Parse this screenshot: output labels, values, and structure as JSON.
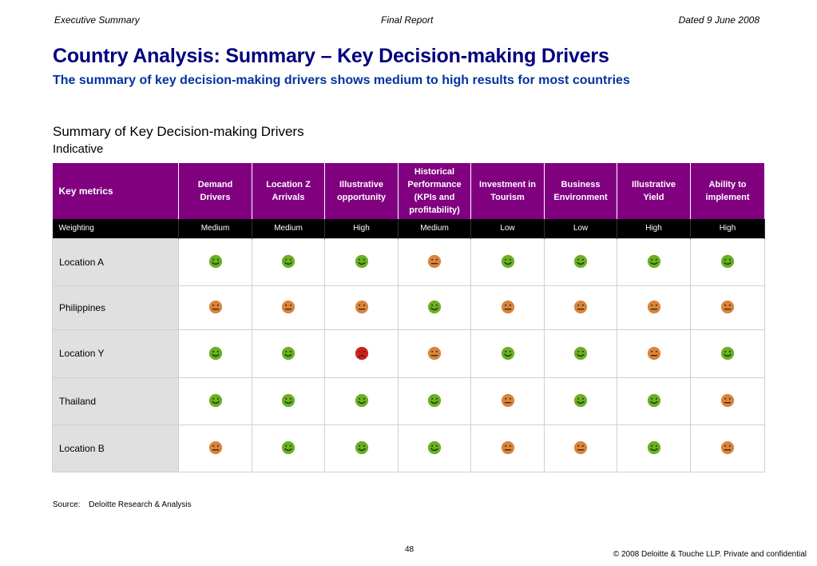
{
  "header": {
    "left": "Executive Summary",
    "center": "Final Report",
    "right": "Dated 9 June 2008"
  },
  "title": "Country Analysis: Summary – Key Decision-making Drivers",
  "subtitle": "The summary of key decision-making drivers shows medium to high results for most countries",
  "section": {
    "title": "Summary of Key Decision-making Drivers",
    "subtitle": "Indicative"
  },
  "table": {
    "key_metrics_label": "Key metrics",
    "columns": [
      {
        "lines": [
          "Demand",
          "Drivers"
        ]
      },
      {
        "lines": [
          "Location Z",
          "Arrivals"
        ]
      },
      {
        "lines": [
          "Illustrative",
          "opportunity"
        ]
      },
      {
        "lines": [
          "Historical",
          "Performance",
          "(KPIs and",
          "profitability)"
        ]
      },
      {
        "lines": [
          "Investment in",
          "Tourism"
        ]
      },
      {
        "lines": [
          "Business",
          "Environment"
        ]
      },
      {
        "lines": [
          "Illustrative",
          "Yield"
        ]
      },
      {
        "lines": [
          "Ability to",
          "implement"
        ]
      }
    ],
    "weighting_label": "Weighting",
    "weightings": [
      "Medium",
      "Medium",
      "High",
      "Medium",
      "Low",
      "Low",
      "High",
      "High"
    ],
    "rows": [
      {
        "label": "Location A",
        "ratings": [
          "happy",
          "happy",
          "happy",
          "neutral",
          "happy",
          "happy",
          "happy",
          "happy"
        ]
      },
      {
        "label": "Philippines",
        "ratings": [
          "neutral",
          "neutral",
          "neutral",
          "happy",
          "neutral",
          "neutral",
          "neutral",
          "neutral"
        ]
      },
      {
        "label": "Location Y",
        "ratings": [
          "happy",
          "happy",
          "sad",
          "neutral",
          "happy",
          "happy",
          "neutral",
          "happy"
        ]
      },
      {
        "label": "Thailand",
        "ratings": [
          "happy",
          "happy",
          "happy",
          "happy",
          "neutral",
          "happy",
          "happy",
          "neutral"
        ]
      },
      {
        "label": "Location B",
        "ratings": [
          "neutral",
          "happy",
          "happy",
          "happy",
          "neutral",
          "neutral",
          "happy",
          "neutral"
        ]
      }
    ]
  },
  "rating_colors": {
    "happy": "#6ab023",
    "neutral": "#d9843b",
    "sad": "#d0211c"
  },
  "rating_icons": {
    "happy": "smiley-happy-icon",
    "neutral": "smiley-neutral-icon",
    "sad": "smiley-sad-icon"
  },
  "source": {
    "label": "Source:",
    "text": "Deloitte Research & Analysis"
  },
  "page_number": "48",
  "copyright": "© 2008 Deloitte & Touche LLP. Private and confidential"
}
